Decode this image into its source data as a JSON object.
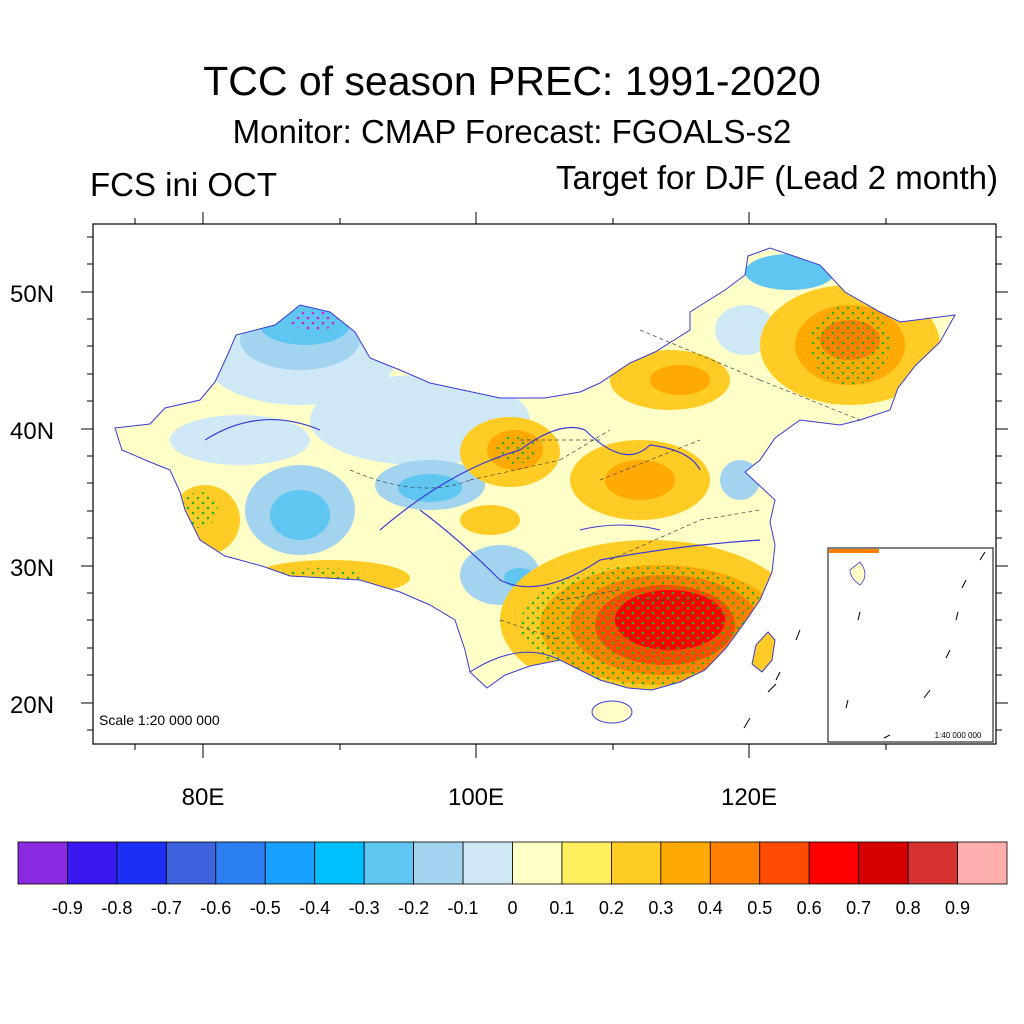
{
  "title": "TCC of season PREC: 1991-2020",
  "subtitle": "Monitor: CMAP   Forecast: FGOALS-s2",
  "left_label": "FCS ini OCT",
  "right_label": "Target for DJF (Lead 2 month)",
  "map": {
    "scale_label": "Scale 1:20 000 000",
    "inset_scale_label": "1:40 000 000",
    "lat_labels": [
      "50N",
      "40N",
      "30N",
      "20N"
    ],
    "lon_labels": [
      "80E",
      "100E",
      "120E"
    ]
  },
  "colorbar": {
    "colors": [
      "#8a2be2",
      "#3a18f0",
      "#1e2ff5",
      "#3f62de",
      "#2b7ff0",
      "#1aa0ff",
      "#00bfff",
      "#5fc6f2",
      "#a2d4f0",
      "#cfe8f6",
      "#ffffc8",
      "#ffee5e",
      "#ffcc25",
      "#ffa904",
      "#ff8000",
      "#ff4c00",
      "#ff0000",
      "#d60000",
      "#d63232",
      "#ffaeae"
    ],
    "labels": [
      "-0.9",
      "-0.8",
      "-0.7",
      "-0.6",
      "-0.5",
      "-0.4",
      "-0.3",
      "-0.2",
      "-0.1",
      "0",
      "0.1",
      "0.2",
      "0.3",
      "0.4",
      "0.5",
      "0.6",
      "0.7",
      "0.8",
      "0.9"
    ]
  }
}
